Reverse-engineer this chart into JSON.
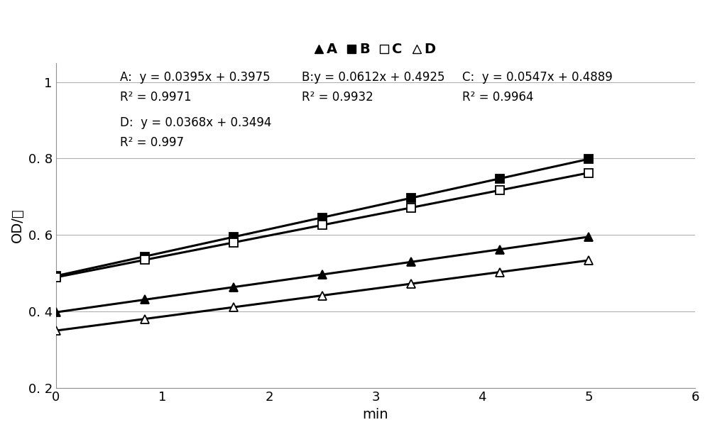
{
  "series": [
    {
      "label": "A",
      "slope": 0.0395,
      "intercept": 0.3975,
      "marker": "^",
      "fillstyle": "full"
    },
    {
      "label": "B",
      "slope": 0.0612,
      "intercept": 0.4925,
      "marker": "s",
      "fillstyle": "full"
    },
    {
      "label": "C",
      "slope": 0.0547,
      "intercept": 0.4889,
      "marker": "s",
      "fillstyle": "none"
    },
    {
      "label": "D",
      "slope": 0.0368,
      "intercept": 0.3494,
      "marker": "^",
      "fillstyle": "none"
    }
  ],
  "x_data": [
    0,
    0.833,
    1.667,
    2.5,
    3.333,
    4.167,
    5.0
  ],
  "xlim": [
    0,
    6
  ],
  "ylim": [
    0.2,
    1.05
  ],
  "xticks": [
    0,
    1,
    2,
    3,
    4,
    5,
    6
  ],
  "yticks": [
    0.2,
    0.4,
    0.6,
    0.8,
    1.0
  ],
  "ytick_labels": [
    "0. 2",
    "0. 4",
    "0. 6",
    "0. 8",
    "1"
  ],
  "xlabel": "min",
  "ylabel": "OD/値",
  "background_color": "#ffffff",
  "grid_color": "#b0b0b0",
  "annot_A_line1": "A:  y = 0.0395x + 0.3975",
  "annot_A_line2": "R² = 0.9971",
  "annot_B_line1": "B:y = 0.0612x + 0.4925",
  "annot_B_line2": "R² = 0.9932",
  "annot_C_line1": "C:  y = 0.0547x + 0.4889",
  "annot_C_line2": "R² = 0.9964",
  "annot_D_line1": "D:  y = 0.0368x + 0.3494",
  "annot_D_line2": "R² = 0.997",
  "legend_labels": [
    "A",
    "B",
    "C",
    "D"
  ],
  "figsize": [
    10.0,
    6.09
  ],
  "dpi": 100,
  "annot_fontsize": 12,
  "tick_fontsize": 13,
  "axis_label_fontsize": 14,
  "legend_fontsize": 14,
  "line_width": 2.2,
  "marker_size": 9
}
